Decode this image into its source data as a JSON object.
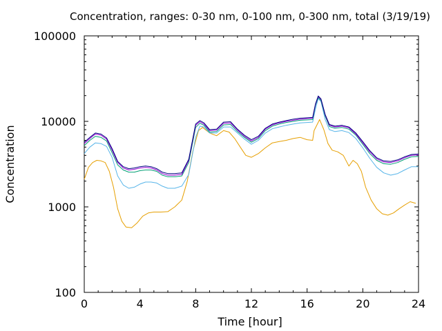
{
  "chart_data": {
    "type": "line",
    "title": "Concentration, ranges: 0-30 nm, 0-100 nm, 0-300 nm, total (3/19/19)",
    "xlabel": "Time [hour]",
    "ylabel": "Concentration",
    "xlim": [
      0,
      24
    ],
    "ylim": [
      100,
      100000
    ],
    "yscale": "log",
    "grid": false,
    "legend": "none",
    "xticks": [
      0,
      4,
      8,
      12,
      16,
      20,
      24
    ],
    "yticks": [
      100,
      1000,
      10000,
      100000
    ],
    "series": [
      {
        "color": "#e69f00",
        "x": [
          0,
          0.3,
          0.6,
          0.9,
          1.2,
          1.5,
          1.8,
          2.1,
          2.4,
          2.7,
          3.0,
          3.4,
          3.8,
          4.2,
          4.6,
          5.0,
          5.5,
          6.0,
          6.5,
          7.0,
          7.4,
          7.8,
          8.2,
          8.5,
          9.0,
          9.5,
          10.0,
          10.4,
          10.8,
          11.2,
          11.6,
          12.0,
          12.5,
          13.0,
          13.5,
          14.0,
          14.5,
          15.0,
          15.5,
          16.0,
          16.4,
          16.5,
          16.9,
          17.2,
          17.5,
          17.8,
          18.2,
          18.6,
          19.0,
          19.3,
          19.6,
          19.9,
          20.2,
          20.6,
          21.0,
          21.4,
          21.8,
          22.2,
          22.6,
          23.0,
          23.4,
          23.8
        ],
        "y": [
          2100,
          2900,
          3300,
          3500,
          3450,
          3300,
          2600,
          1700,
          950,
          680,
          580,
          570,
          650,
          780,
          850,
          870,
          870,
          880,
          1000,
          1200,
          2000,
          4500,
          7800,
          8500,
          7300,
          6800,
          7800,
          7500,
          6300,
          5000,
          4000,
          3800,
          4200,
          4900,
          5600,
          5800,
          6000,
          6300,
          6500,
          6100,
          6000,
          7800,
          10500,
          8000,
          5500,
          4600,
          4400,
          4000,
          3000,
          3500,
          3200,
          2600,
          1700,
          1200,
          950,
          830,
          800,
          850,
          950,
          1050,
          1150,
          1100
        ]
      },
      {
        "color": "#56b4e9",
        "x": [
          0,
          0.4,
          0.8,
          1.2,
          1.6,
          2.0,
          2.4,
          2.8,
          3.2,
          3.6,
          4.0,
          4.4,
          4.8,
          5.2,
          5.6,
          6.0,
          6.5,
          7.0,
          7.5,
          8.0,
          8.3,
          8.6,
          9.0,
          9.5,
          10.0,
          10.5,
          11.0,
          11.5,
          12.0,
          12.5,
          13.0,
          13.5,
          14.0,
          14.5,
          15.0,
          15.5,
          16.0,
          16.4,
          16.6,
          16.8,
          17.0,
          17.3,
          17.6,
          18.0,
          18.5,
          19.0,
          19.5,
          20.0,
          20.5,
          21.0,
          21.5,
          22.0,
          22.5,
          23.0,
          23.5,
          24.0
        ],
        "y": [
          4200,
          5000,
          5600,
          5500,
          5100,
          3800,
          2300,
          1800,
          1650,
          1700,
          1850,
          1950,
          1950,
          1900,
          1750,
          1650,
          1650,
          1750,
          2400,
          6500,
          8800,
          8600,
          7300,
          7300,
          8600,
          8600,
          7300,
          6200,
          5400,
          6000,
          7300,
          8200,
          8600,
          9000,
          9300,
          9600,
          9700,
          9800,
          14000,
          18500,
          17000,
          10500,
          8000,
          7600,
          7800,
          7400,
          6300,
          4900,
          3700,
          2900,
          2500,
          2350,
          2450,
          2700,
          2950,
          2950
        ]
      },
      {
        "color": "#009e73",
        "x": [
          0,
          0.4,
          0.8,
          1.2,
          1.6,
          2.0,
          2.4,
          2.8,
          3.2,
          3.6,
          4.0,
          4.4,
          4.8,
          5.2,
          5.6,
          6.0,
          6.5,
          7.0,
          7.5,
          8.0,
          8.3,
          8.6,
          9.0,
          9.5,
          10.0,
          10.5,
          11.0,
          11.5,
          12.0,
          12.5,
          13.0,
          13.5,
          14.0,
          14.5,
          15.0,
          15.5,
          16.0,
          16.4,
          16.6,
          16.8,
          17.0,
          17.3,
          17.6,
          18.0,
          18.5,
          19.0,
          19.5,
          20.0,
          20.5,
          21.0,
          21.5,
          22.0,
          22.5,
          23.0,
          23.5,
          24.0
        ],
        "y": [
          5200,
          6000,
          6700,
          6500,
          5900,
          4300,
          3100,
          2700,
          2550,
          2550,
          2650,
          2700,
          2700,
          2600,
          2350,
          2250,
          2250,
          2300,
          3300,
          8500,
          9500,
          9000,
          7500,
          7600,
          9100,
          9200,
          7600,
          6500,
          5700,
          6300,
          7800,
          8800,
          9300,
          9700,
          10000,
          10300,
          10400,
          10500,
          15500,
          19000,
          17500,
          11500,
          8700,
          8300,
          8500,
          8100,
          6900,
          5400,
          4200,
          3500,
          3200,
          3150,
          3300,
          3600,
          3850,
          3900
        ]
      },
      {
        "color": "#9400d3",
        "x": [
          0,
          0.4,
          0.8,
          1.2,
          1.6,
          2.0,
          2.4,
          2.8,
          3.2,
          3.6,
          4.0,
          4.4,
          4.8,
          5.2,
          5.6,
          6.0,
          6.5,
          7.0,
          7.5,
          8.0,
          8.3,
          8.6,
          9.0,
          9.5,
          10.0,
          10.5,
          11.0,
          11.5,
          12.0,
          12.5,
          13.0,
          13.5,
          14.0,
          14.5,
          15.0,
          15.5,
          16.0,
          16.4,
          16.6,
          16.8,
          17.0,
          17.3,
          17.6,
          18.0,
          18.5,
          19.0,
          19.5,
          20.0,
          20.5,
          21.0,
          21.5,
          22.0,
          22.5,
          23.0,
          23.5,
          24.0
        ],
        "y": [
          5500,
          6300,
          7100,
          6900,
          6200,
          4600,
          3300,
          2850,
          2700,
          2750,
          2850,
          2900,
          2850,
          2700,
          2450,
          2350,
          2350,
          2400,
          3500,
          9000,
          9900,
          9300,
          7800,
          7900,
          9500,
          9600,
          7900,
          6700,
          5900,
          6500,
          8100,
          9100,
          9600,
          10000,
          10300,
          10600,
          10800,
          10900,
          15800,
          19500,
          18000,
          11800,
          9000,
          8600,
          8800,
          8400,
          7100,
          5600,
          4400,
          3650,
          3350,
          3300,
          3450,
          3750,
          4000,
          4050
        ]
      },
      {
        "color": "#000080",
        "x": [
          0,
          0.4,
          0.8,
          1.2,
          1.6,
          2.0,
          2.4,
          2.8,
          3.2,
          3.6,
          4.0,
          4.4,
          4.8,
          5.2,
          5.6,
          6.0,
          6.5,
          7.0,
          7.5,
          8.0,
          8.3,
          8.6,
          9.0,
          9.5,
          10.0,
          10.5,
          11.0,
          11.5,
          12.0,
          12.5,
          13.0,
          13.5,
          14.0,
          14.5,
          15.0,
          15.5,
          16.0,
          16.4,
          16.6,
          16.8,
          17.0,
          17.3,
          17.6,
          18.0,
          18.5,
          19.0,
          19.5,
          20.0,
          20.5,
          21.0,
          21.5,
          22.0,
          22.5,
          23.0,
          23.5,
          24.0
        ],
        "y": [
          5700,
          6500,
          7300,
          7100,
          6400,
          4800,
          3400,
          2950,
          2800,
          2850,
          2950,
          3000,
          2950,
          2800,
          2550,
          2450,
          2450,
          2500,
          3600,
          9300,
          10200,
          9600,
          8000,
          8100,
          9800,
          9900,
          8100,
          6900,
          6100,
          6700,
          8300,
          9300,
          9800,
          10200,
          10600,
          10900,
          11000,
          11100,
          16000,
          19800,
          18300,
          12000,
          9200,
          8800,
          9000,
          8600,
          7300,
          5800,
          4550,
          3750,
          3450,
          3400,
          3550,
          3850,
          4100,
          4150
        ]
      }
    ]
  }
}
